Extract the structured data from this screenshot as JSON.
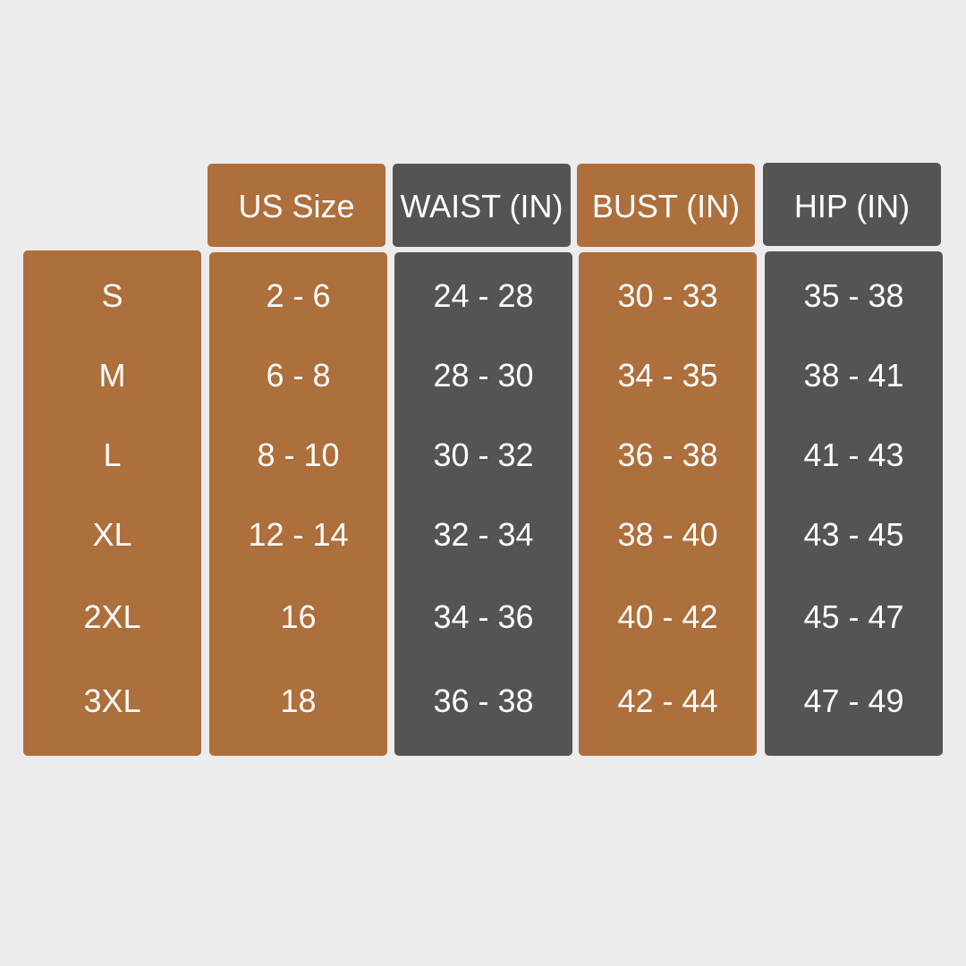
{
  "table": {
    "header": [
      "US Size",
      "WAIST (IN)",
      "BUST (IN)",
      "HIP (IN)"
    ],
    "rows": [
      [
        "S",
        "2 - 6",
        "24 - 28",
        "30 - 33",
        "35 - 38"
      ],
      [
        "M",
        "6 - 8",
        "28 - 30",
        "34 - 35",
        "38 - 41"
      ],
      [
        "L",
        "8 - 10",
        "30 - 32",
        "36 - 38",
        "41 - 43"
      ],
      [
        "XL",
        "12 - 14",
        "32 - 34",
        "38 - 40",
        "43 - 45"
      ],
      [
        "2XL",
        "16",
        "34 - 36",
        "40 - 42",
        "45 - 47"
      ],
      [
        "3XL",
        "18",
        "36 - 38",
        "42 - 44",
        "47 - 49"
      ]
    ]
  }
}
